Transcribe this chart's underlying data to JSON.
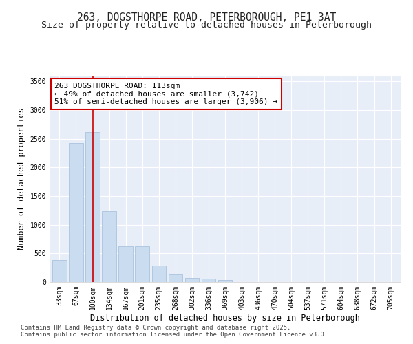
{
  "title_line1": "263, DOGSTHORPE ROAD, PETERBOROUGH, PE1 3AT",
  "title_line2": "Size of property relative to detached houses in Peterborough",
  "xlabel": "Distribution of detached houses by size in Peterborough",
  "ylabel": "Number of detached properties",
  "categories": [
    "33sqm",
    "67sqm",
    "100sqm",
    "134sqm",
    "167sqm",
    "201sqm",
    "235sqm",
    "268sqm",
    "302sqm",
    "336sqm",
    "369sqm",
    "403sqm",
    "436sqm",
    "470sqm",
    "504sqm",
    "537sqm",
    "571sqm",
    "604sqm",
    "638sqm",
    "672sqm",
    "705sqm"
  ],
  "values": [
    390,
    2420,
    2620,
    1240,
    620,
    620,
    290,
    140,
    75,
    60,
    40,
    0,
    0,
    0,
    0,
    0,
    0,
    0,
    0,
    0,
    0
  ],
  "bar_color": "#c9dcf0",
  "bar_edge_color": "#a0bcd8",
  "vline_x_index": 2,
  "vline_color": "#cc0000",
  "annotation_text": "263 DOGSTHORPE ROAD: 113sqm\n← 49% of detached houses are smaller (3,742)\n51% of semi-detached houses are larger (3,906) →",
  "annotation_box_facecolor": "#ffffff",
  "annotation_box_edgecolor": "#cc0000",
  "ylim": [
    0,
    3600
  ],
  "yticks": [
    0,
    500,
    1000,
    1500,
    2000,
    2500,
    3000,
    3500
  ],
  "background_color": "#e8eef8",
  "grid_color": "#ffffff",
  "footer_line1": "Contains HM Land Registry data © Crown copyright and database right 2025.",
  "footer_line2": "Contains public sector information licensed under the Open Government Licence v3.0.",
  "title_fontsize": 10.5,
  "subtitle_fontsize": 9.5,
  "axis_label_fontsize": 8.5,
  "tick_fontsize": 7,
  "annotation_fontsize": 8,
  "footer_fontsize": 6.5
}
